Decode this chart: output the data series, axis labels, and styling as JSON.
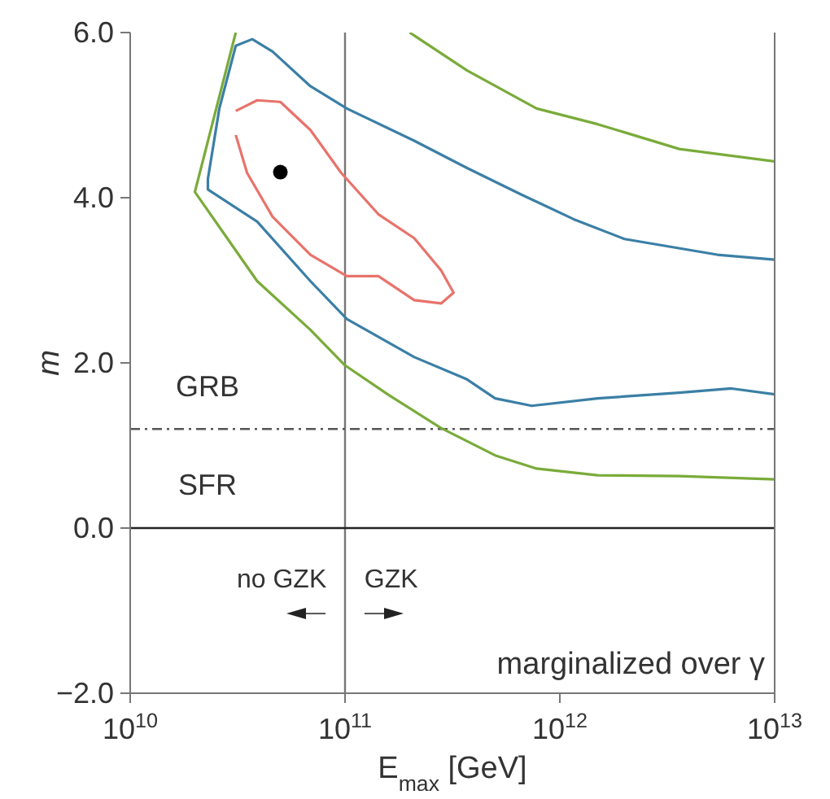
{
  "chart_data": {
    "type": "line",
    "xlabel": "E$_{max}$ [GeV]",
    "ylabel": "m",
    "log": "x",
    "xlim": [
      10000000000.0,
      10000000000000.0
    ],
    "xticks": [
      {
        "value": 10000000000.0,
        "label": "10$^{10}$"
      },
      {
        "value": 100000000000.0,
        "label": "10$^{11}$"
      },
      {
        "value": 1000000000000.0,
        "label": "10$^{12}$"
      },
      {
        "value": 10000000000000.0,
        "label": "10$^{13}$"
      }
    ],
    "ylim": [
      -2,
      6
    ],
    "yticks": [
      {
        "value": -2,
        "label": "−2.0"
      },
      {
        "value": 0,
        "label": "0.0"
      },
      {
        "value": 2,
        "label": "2.0"
      },
      {
        "value": 4,
        "label": "4.0"
      },
      {
        "value": 6,
        "label": "6.0"
      }
    ],
    "series": [
      {
        "color": "#e8736b",
        "marker": "none",
        "x": [
          31000000000.0,
          39000000000.0,
          50000000000.0,
          69000000000.0,
          96000000000.0,
          143000000000.0,
          210000000000.0,
          280000000000.0,
          320000000000.0,
          280000000000.0,
          210000000000.0,
          143000000000.0,
          102000000000.0,
          69000000000.0,
          46000000000.0,
          35000000000.0,
          31000000000.0
        ],
        "values": [
          5.05,
          5.18,
          5.16,
          4.82,
          4.3,
          3.8,
          3.51,
          3.12,
          2.85,
          2.72,
          2.76,
          3.05,
          3.05,
          3.31,
          3.77,
          4.3,
          4.76
        ]
      },
      {
        "color": "#3b7fa6",
        "marker": "none",
        "x": [
          10000000000000.0,
          5400000000000.0,
          2000000000000.0,
          1160000000000.0,
          660000000000.0,
          370000000000.0,
          210000000000.0,
          102000000000.0,
          69000000000.0,
          46000000000.0,
          37000000000.0,
          31000000000.0,
          26000000000.0,
          23000000000.0,
          23000000000.0,
          39000000000.0,
          69000000000.0,
          102000000000.0,
          210000000000.0,
          370000000000.0,
          500000000000.0,
          740000000000.0,
          1500000000000.0,
          3600000000000.0,
          6300000000000.0,
          10000000000000.0
        ],
        "values": [
          3.25,
          3.31,
          3.5,
          3.74,
          4.04,
          4.36,
          4.69,
          5.08,
          5.35,
          5.77,
          5.92,
          5.84,
          5.08,
          4.23,
          4.1,
          3.71,
          2.99,
          2.53,
          2.07,
          1.8,
          1.57,
          1.48,
          1.57,
          1.64,
          1.69,
          1.62
        ]
      },
      {
        "color": "#7aab3a",
        "marker": "none",
        "x": [
          200000000000.0,
          370000000000.0,
          780000000000.0,
          1500000000000.0,
          3600000000000.0,
          10000000000000.0
        ],
        "values": [
          6.0,
          5.54,
          5.08,
          4.89,
          4.59,
          4.44
        ]
      },
      {
        "color": "#7aab3a",
        "marker": "none",
        "x": [
          31000000000.0,
          20000000000.0,
          39000000000.0,
          69000000000.0,
          100000000000.0,
          160000000000.0,
          280000000000.0,
          500000000000.0,
          780000000000.0,
          1500000000000.0,
          3600000000000.0,
          10000000000000.0
        ],
        "values": [
          6.0,
          4.07,
          2.99,
          2.4,
          1.97,
          1.61,
          1.21,
          0.88,
          0.72,
          0.64,
          0.63,
          0.59
        ]
      },
      {
        "type": "scatter",
        "color": "#000000",
        "marker": "circle",
        "x": [
          50000000000.0
        ],
        "values": [
          4.31
        ]
      }
    ],
    "ref_lines": [
      {
        "axis": "x",
        "value": 100000000000.0,
        "color": "#777777",
        "line_style": "solid"
      },
      {
        "axis": "y",
        "value": 1.2,
        "color": "#555555",
        "line_style": "dashdot"
      },
      {
        "axis": "y",
        "value": 0,
        "color": "#222222",
        "line_style": "solid"
      }
    ],
    "annotations": [
      "GRB",
      "SFR",
      "no GZK",
      "GZK",
      "marginalized over γ"
    ]
  }
}
